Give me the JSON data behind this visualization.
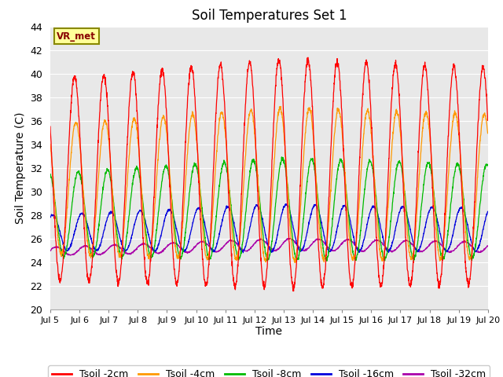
{
  "title": "Soil Temperatures Set 1",
  "xlabel": "Time",
  "ylabel": "Soil Temperature (C)",
  "ylim": [
    20,
    44
  ],
  "yticks": [
    20,
    22,
    24,
    26,
    28,
    30,
    32,
    34,
    36,
    38,
    40,
    42,
    44
  ],
  "x_labels": [
    "Jul 5",
    "Jul 6",
    "Jul 7",
    "Jul 8",
    "Jul 9",
    "Jul 10",
    "Jul 11",
    "Jul 12",
    "Jul 13",
    "Jul 14",
    "Jul 15",
    "Jul 16",
    "Jul 17",
    "Jul 18",
    "Jul 19",
    "Jul 20"
  ],
  "fig_background": "#ffffff",
  "plot_bg_color": "#e8e8e8",
  "grid_color": "#ffffff",
  "colors": {
    "Tsoil -2cm": "#ff0000",
    "Tsoil -4cm": "#ff9900",
    "Tsoil -8cm": "#00bb00",
    "Tsoil -16cm": "#0000dd",
    "Tsoil -32cm": "#aa00aa"
  },
  "vr_met_label": "VR_met",
  "n_days": 15,
  "ppd": 144,
  "label_fontsize": 10,
  "title_fontsize": 12
}
